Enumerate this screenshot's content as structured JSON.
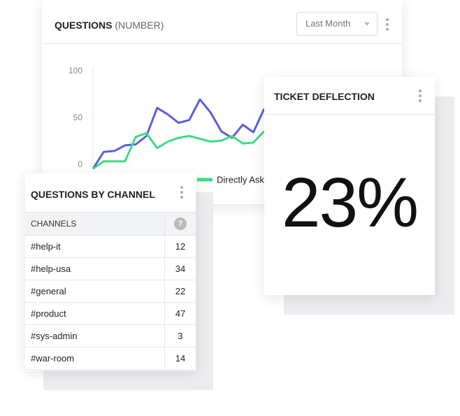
{
  "questions_card": {
    "title": "QUESTIONS",
    "title_unit": "(NUMBER)",
    "dropdown": "Last Month"
  },
  "chart_data": {
    "type": "line",
    "categories": [
      null,
      null,
      null,
      null,
      null,
      null,
      null,
      null,
      null,
      null,
      null,
      null,
      null,
      null,
      null,
      null,
      null
    ],
    "series": [
      {
        "color": "#5a5fd8",
        "values": [
          -4,
          14,
          15,
          21,
          22,
          31,
          61,
          54,
          45,
          48,
          70,
          56,
          36,
          29,
          43,
          35,
          60
        ]
      },
      {
        "name": "Directly Aske",
        "color": "#3ddc84",
        "values": [
          -4,
          4,
          4,
          4,
          30,
          34,
          18,
          25,
          29,
          31,
          28,
          25,
          26,
          31,
          23,
          24,
          36
        ]
      }
    ],
    "ylim": [
      -4,
      104
    ],
    "yticks": [
      0,
      50,
      100
    ]
  },
  "deflection_card": {
    "title": "TICKET DEFLECTION",
    "value": "23%"
  },
  "channel_card": {
    "title": "QUESTIONS BY CHANNEL",
    "table": {
      "header": [
        "CHANNELS",
        "?"
      ],
      "rows": [
        [
          "#help-it",
          12
        ],
        [
          "#help-usa",
          34
        ],
        [
          "#general",
          22
        ],
        [
          "#product",
          47
        ],
        [
          "#sys-admin",
          3
        ],
        [
          "#war-room",
          14
        ]
      ]
    }
  }
}
